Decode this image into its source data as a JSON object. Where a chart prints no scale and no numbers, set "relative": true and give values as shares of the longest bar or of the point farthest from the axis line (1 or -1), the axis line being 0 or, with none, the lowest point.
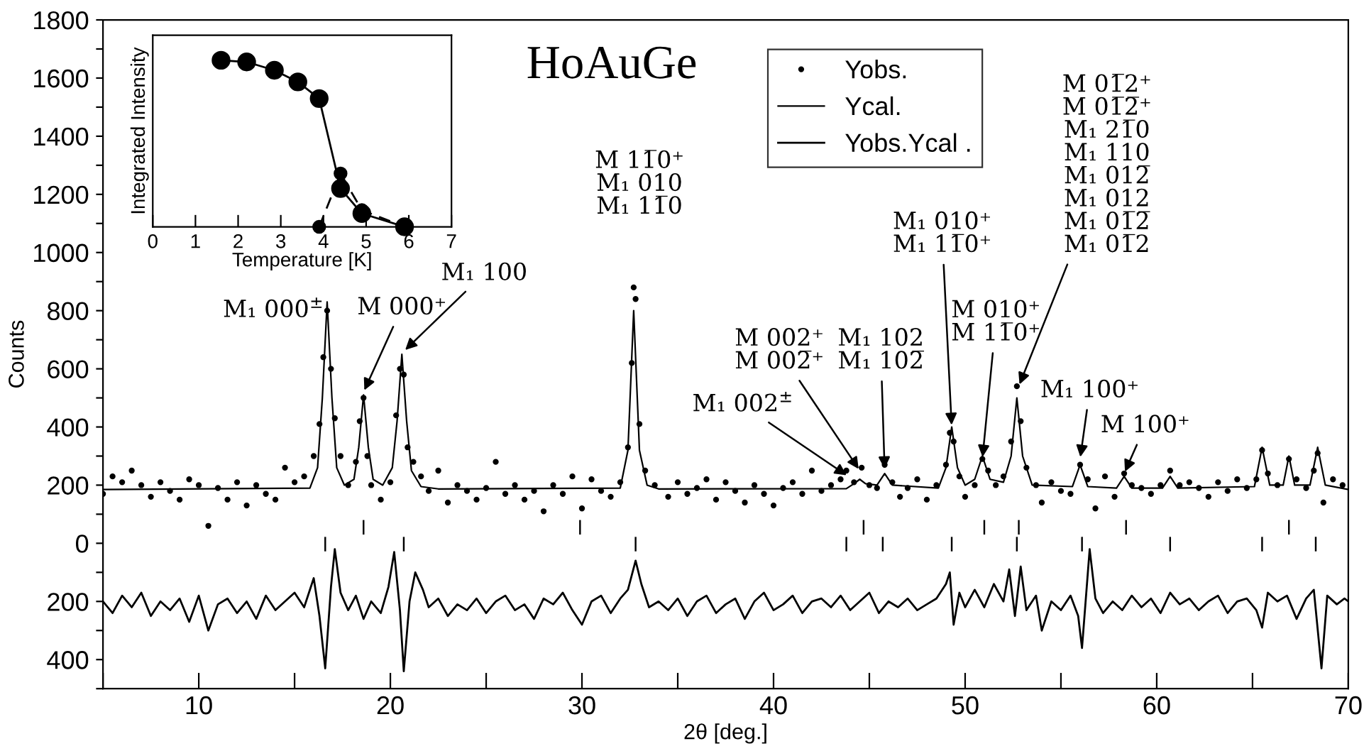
{
  "chart_data": [
    {
      "type": "scatter",
      "title": "HoAuGe",
      "xlabel": "2θ [deg.]",
      "ylabel": "Counts",
      "xlim": [
        5,
        70
      ],
      "ylim": [
        -500,
        1800
      ],
      "xticks": [
        {
          "value": 5,
          "label": null
        },
        10,
        {
          "value": 15,
          "label": null
        },
        20,
        {
          "value": 25,
          "label": null
        },
        30,
        {
          "value": 35,
          "label": null
        },
        40,
        {
          "value": 45,
          "label": null
        },
        50,
        {
          "value": 55,
          "label": null
        },
        60,
        {
          "value": 65,
          "label": null
        },
        70
      ],
      "yticks": [
        {
          "value": -500,
          "label": null
        },
        {
          "value": -400,
          "label": "400"
        },
        {
          "value": -300,
          "label": null
        },
        {
          "value": -200,
          "label": "200"
        },
        {
          "value": -100,
          "label": null
        },
        0,
        {
          "value": 100,
          "label": null
        },
        200,
        {
          "value": 300,
          "label": null
        },
        400,
        {
          "value": 500,
          "label": null
        },
        600,
        {
          "value": 700,
          "label": null
        },
        800,
        {
          "value": 900,
          "label": null
        },
        1000,
        {
          "value": 1100,
          "label": null
        },
        1200,
        {
          "value": 1300,
          "label": null
        },
        1400,
        {
          "value": 1500,
          "label": null
        },
        1600,
        {
          "value": 1700,
          "label": null
        },
        1800
      ],
      "legend": "top",
      "grid": false,
      "annotations": [
        {
          "text": "M₁ 000$^{±}$",
          "x": 16.7,
          "y": 830
        },
        {
          "text": "M 000⁺",
          "x": 18.6,
          "y": 520
        },
        {
          "text": "M₁ 100",
          "x": 20.7,
          "y": 660
        },
        "M 11̅0⁺\nM₁ 010\nM₁ 11̅0",
        {
          "text": "M 002⁺\nM 002̅⁺",
          "x": 44.5,
          "y": 250
        },
        {
          "text": "M₁ 102\nM₁ 102̅",
          "x": 45.8,
          "y": 250
        },
        {
          "text": "M₁ 002$^{±}$",
          "x": 43.9,
          "y": 230
        },
        {
          "text": "M₁ 010⁺\nM₁ 11̅0⁺",
          "x": 49.3,
          "y": 400
        },
        {
          "text": "M 010⁺\nM 11̅0⁺",
          "x": 50.9,
          "y": 290
        },
        {
          "text": "M 01̅2⁺\nM 01̅2̅⁺\nM₁ 21̅0\nM₁ 110\nM₁ 012̅\nM₁ 012\nM₁ 01̅2̅\nM₁ 01̅2",
          "x": 52.8,
          "y": 540
        },
        {
          "text": "M₁ 100⁺",
          "x": 56.0,
          "y": 290
        },
        {
          "text": "M 100⁺",
          "x": 58.3,
          "y": 240
        }
      ],
      "series": [
        {
          "name": "Yobs.",
          "type": "scatter",
          "marker": "circle",
          "color": "#000000",
          "x": [
            5.0,
            5.5,
            6.0,
            6.5,
            7.0,
            7.5,
            8.0,
            8.5,
            9.0,
            9.5,
            10.0,
            10.5,
            11.0,
            11.5,
            12.0,
            12.5,
            13.0,
            13.5,
            14.0,
            14.5,
            15.0,
            15.5,
            16.0,
            16.3,
            16.5,
            16.7,
            16.9,
            17.1,
            17.4,
            17.8,
            18.2,
            18.4,
            18.6,
            18.8,
            19.0,
            19.5,
            20.0,
            20.3,
            20.5,
            20.7,
            20.9,
            21.2,
            21.6,
            22.0,
            22.5,
            23.0,
            23.5,
            24.0,
            24.5,
            25.0,
            25.5,
            26.0,
            26.5,
            27.0,
            27.5,
            28.0,
            28.5,
            29.0,
            29.5,
            30.0,
            30.5,
            31.0,
            31.5,
            32.0,
            32.4,
            32.6,
            32.7,
            32.8,
            33.0,
            33.3,
            33.8,
            34.5,
            35.0,
            35.5,
            36.0,
            36.5,
            37.0,
            37.5,
            38.0,
            38.5,
            39.0,
            39.5,
            40.0,
            40.5,
            41.0,
            41.5,
            42.0,
            42.5,
            43.0,
            43.5,
            43.8,
            44.2,
            44.6,
            45.0,
            45.4,
            45.8,
            46.2,
            46.6,
            47.0,
            47.5,
            48.0,
            48.5,
            49.0,
            49.2,
            49.4,
            49.7,
            50.0,
            50.5,
            50.9,
            51.2,
            51.6,
            52.0,
            52.4,
            52.7,
            52.9,
            53.2,
            53.7,
            54.0,
            54.5,
            55.0,
            55.5,
            56.0,
            56.4,
            56.8,
            57.3,
            57.8,
            58.3,
            58.7,
            59.2,
            59.7,
            60.2,
            60.7,
            61.2,
            61.7,
            62.2,
            62.7,
            63.2,
            63.7,
            64.2,
            64.7,
            65.2,
            65.5,
            65.8,
            66.3,
            66.9,
            67.3,
            67.8,
            68.2,
            68.4,
            68.7,
            69.2,
            69.7
          ],
          "values": [
            170,
            230,
            210,
            250,
            200,
            160,
            210,
            180,
            150,
            220,
            200,
            60,
            190,
            150,
            210,
            130,
            200,
            170,
            150,
            260,
            210,
            230,
            300,
            410,
            640,
            800,
            600,
            430,
            300,
            200,
            280,
            420,
            500,
            300,
            200,
            150,
            210,
            440,
            600,
            580,
            330,
            280,
            230,
            180,
            250,
            140,
            200,
            180,
            150,
            190,
            280,
            170,
            200,
            150,
            180,
            110,
            200,
            170,
            230,
            120,
            220,
            180,
            160,
            210,
            330,
            620,
            880,
            840,
            410,
            250,
            200,
            160,
            210,
            170,
            190,
            220,
            150,
            210,
            180,
            140,
            200,
            170,
            130,
            190,
            210,
            170,
            250,
            180,
            200,
            220,
            250,
            210,
            260,
            200,
            190,
            270,
            210,
            160,
            190,
            220,
            150,
            200,
            270,
            380,
            350,
            230,
            160,
            200,
            290,
            250,
            200,
            230,
            350,
            540,
            420,
            260,
            200,
            140,
            210,
            180,
            170,
            270,
            220,
            120,
            230,
            160,
            240,
            200,
            190,
            170,
            200,
            250,
            200,
            210,
            190,
            160,
            210,
            180,
            220,
            190,
            220,
            320,
            240,
            200,
            290,
            220,
            190,
            250,
            310,
            140,
            220,
            200
          ]
        },
        {
          "name": "Ycal.",
          "type": "line",
          "color": "#000000",
          "x": [
            5,
            15.8,
            16.2,
            16.45,
            16.7,
            16.95,
            17.2,
            17.6,
            18.1,
            18.35,
            18.6,
            18.85,
            19.1,
            19.6,
            20.1,
            20.35,
            20.6,
            20.85,
            21.1,
            21.6,
            22.5,
            32.0,
            32.4,
            32.7,
            33.0,
            33.4,
            34,
            43.8,
            44.2,
            44.5,
            44.8,
            45.4,
            45.8,
            46.2,
            48.6,
            49.0,
            49.3,
            49.6,
            50.0,
            50.5,
            50.9,
            51.3,
            52.0,
            52.4,
            52.7,
            53.0,
            53.5,
            55.6,
            56.0,
            56.4,
            57.9,
            58.3,
            58.7,
            60.3,
            60.7,
            61.1,
            65.1,
            65.5,
            65.9,
            66.6,
            66.9,
            67.2,
            68.0,
            68.4,
            68.8,
            70
          ],
          "values": [
            185,
            190,
            260,
            500,
            830,
            500,
            260,
            200,
            220,
            330,
            510,
            330,
            220,
            200,
            260,
            420,
            650,
            420,
            250,
            195,
            187,
            190,
            320,
            800,
            320,
            200,
            187,
            188,
            205,
            220,
            205,
            200,
            240,
            200,
            190,
            260,
            400,
            260,
            200,
            220,
            300,
            220,
            210,
            300,
            500,
            300,
            200,
            195,
            270,
            195,
            190,
            230,
            190,
            190,
            230,
            190,
            195,
            330,
            200,
            200,
            300,
            200,
            200,
            330,
            200,
            185
          ]
        },
        {
          "name": "Yobs.Ycal .",
          "type": "line",
          "color": "#000000",
          "x": [
            5.0,
            5.5,
            6.0,
            6.5,
            7.0,
            7.5,
            8.0,
            8.5,
            9.0,
            9.5,
            10.0,
            10.5,
            11.0,
            11.5,
            12.0,
            12.5,
            13.0,
            13.5,
            14.0,
            14.5,
            15.0,
            15.5,
            16.0,
            16.3,
            16.6,
            16.9,
            17.1,
            17.4,
            17.8,
            18.2,
            18.6,
            19.0,
            19.5,
            19.9,
            20.2,
            20.5,
            20.7,
            21.0,
            21.3,
            21.7,
            22.0,
            22.5,
            23.0,
            23.5,
            24.0,
            24.5,
            25.0,
            25.5,
            26.0,
            26.5,
            27.0,
            27.5,
            28.0,
            28.5,
            29.0,
            29.5,
            30.0,
            30.5,
            31.0,
            31.5,
            32.0,
            32.4,
            32.8,
            33.1,
            33.5,
            34.0,
            34.5,
            35.0,
            35.5,
            36.0,
            36.5,
            37.0,
            37.5,
            38.0,
            38.5,
            39.0,
            39.5,
            40.0,
            40.5,
            41.0,
            41.5,
            42.0,
            42.5,
            43.0,
            43.5,
            44.0,
            44.5,
            45.0,
            45.5,
            46.0,
            46.5,
            47.0,
            47.5,
            48.0,
            48.5,
            49.0,
            49.2,
            49.4,
            49.7,
            50.0,
            50.5,
            51.0,
            51.5,
            52.0,
            52.3,
            52.6,
            52.9,
            53.2,
            53.7,
            54.0,
            54.5,
            55.0,
            55.5,
            55.9,
            56.1,
            56.5,
            56.8,
            57.2,
            57.7,
            58.2,
            58.7,
            59.2,
            59.7,
            60.2,
            60.7,
            61.2,
            61.7,
            62.2,
            62.7,
            63.2,
            63.7,
            64.2,
            64.7,
            65.2,
            65.5,
            65.8,
            66.3,
            66.8,
            67.3,
            67.8,
            68.2,
            68.6,
            68.9,
            69.4,
            69.8,
            70.0
          ],
          "values": [
            -200,
            -240,
            -180,
            -220,
            -170,
            -250,
            -200,
            -230,
            -190,
            -270,
            -180,
            -300,
            -210,
            -190,
            -240,
            -200,
            -260,
            -180,
            -230,
            -200,
            -170,
            -220,
            -120,
            -250,
            -430,
            -150,
            -20,
            -170,
            -230,
            -180,
            -260,
            -200,
            -240,
            -150,
            -30,
            -230,
            -440,
            -200,
            -100,
            -160,
            -220,
            -190,
            -250,
            -210,
            -230,
            -190,
            -240,
            -200,
            -180,
            -230,
            -210,
            -260,
            -190,
            -210,
            -170,
            -230,
            -280,
            -200,
            -180,
            -240,
            -190,
            -160,
            -60,
            -140,
            -220,
            -200,
            -230,
            -190,
            -250,
            -200,
            -180,
            -240,
            -210,
            -190,
            -260,
            -200,
            -170,
            -230,
            -210,
            -180,
            -240,
            -200,
            -190,
            -220,
            -180,
            -230,
            -200,
            -170,
            -240,
            -200,
            -220,
            -190,
            -230,
            -210,
            -190,
            -140,
            -100,
            -280,
            -170,
            -220,
            -160,
            -220,
            -140,
            -200,
            -90,
            -250,
            -80,
            -230,
            -180,
            -300,
            -200,
            -230,
            -180,
            -250,
            -360,
            -20,
            -190,
            -240,
            -200,
            -230,
            -180,
            -220,
            -190,
            -240,
            -170,
            -210,
            -190,
            -230,
            -200,
            -180,
            -240,
            -200,
            -190,
            -230,
            -290,
            -170,
            -200,
            -180,
            -260,
            -190,
            -160,
            -430,
            -180,
            -210,
            -190,
            -200
          ]
        },
        {
          "type": "bar",
          "color": "#000000",
          "x": [
            16.6,
            18.6,
            20.7,
            29.9,
            32.8,
            43.8,
            44.7,
            45.7,
            49.3,
            51.0,
            52.7,
            52.8,
            56.1,
            58.4,
            60.7,
            65.5,
            66.9,
            68.3
          ],
          "base": [
            -28,
            30,
            -28,
            30,
            -28,
            -28,
            30,
            -28,
            -28,
            30,
            -28,
            30,
            -28,
            30,
            -28,
            -28,
            30,
            -28
          ],
          "values": [
            50,
            50,
            50,
            50,
            50,
            50,
            50,
            50,
            50,
            50,
            50,
            50,
            50,
            50,
            50,
            50,
            50,
            50
          ]
        }
      ]
    },
    {
      "type": "line",
      "xlabel": "Temperature [K]",
      "ylabel": "Integrated Intensity",
      "xlim": [
        0,
        7
      ],
      "xticks": [
        0,
        1,
        2,
        3,
        4,
        5,
        6,
        7
      ],
      "relative": true,
      "tick_labels": "x",
      "marker": "circle",
      "grid": false,
      "series": [
        {
          "color": "#000000",
          "line_style": "solid",
          "x": [
            1.6,
            2.2,
            2.85,
            3.4,
            3.9,
            4.4,
            4.9,
            5.9
          ],
          "values": [
            1.0,
            0.99,
            0.94,
            0.87,
            0.77,
            0.23,
            0.08,
            0
          ]
        },
        {
          "color": "#000000",
          "line_style": "dashed",
          "x": [
            3.9,
            4.4,
            4.9,
            5.9
          ],
          "values": [
            0,
            0.32,
            0.1,
            0
          ]
        }
      ]
    }
  ]
}
